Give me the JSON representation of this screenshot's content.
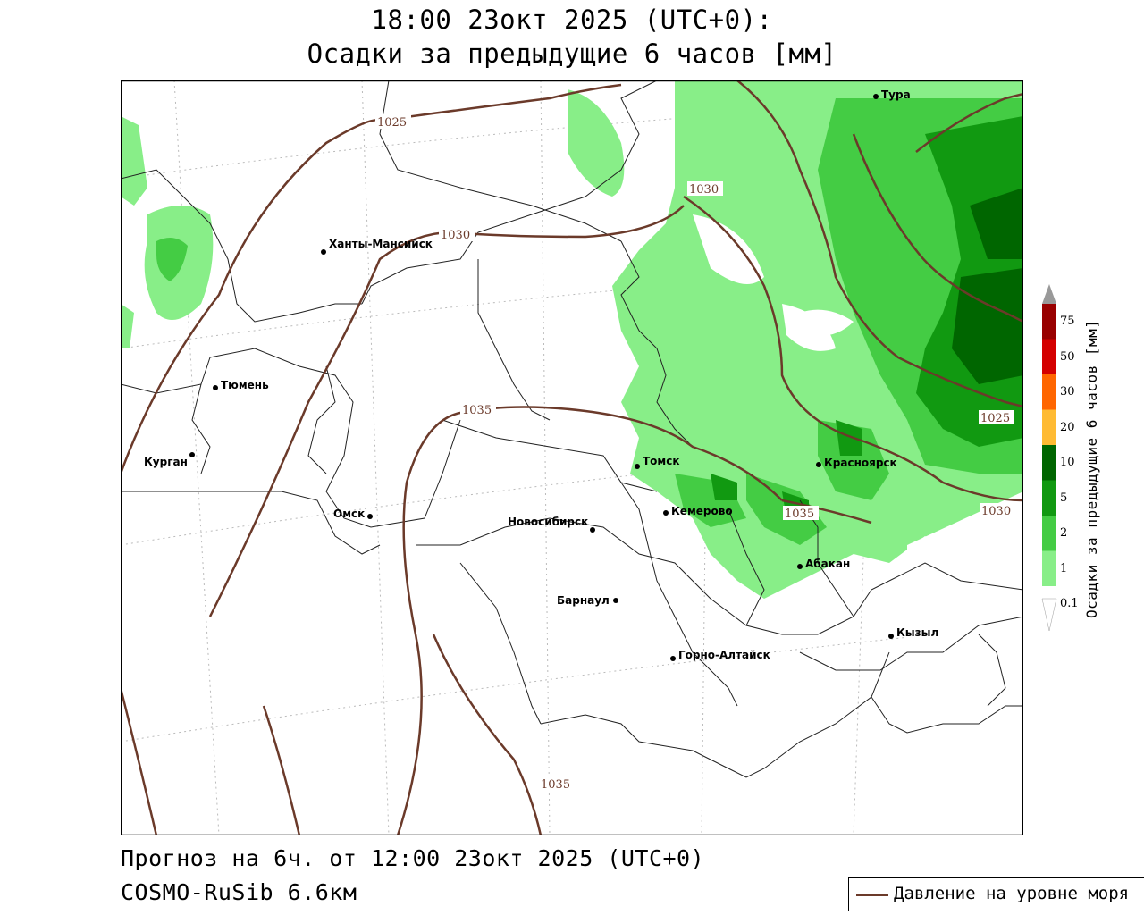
{
  "title": {
    "line1": "18:00 23окт 2025 (UTC+0):",
    "line2": "Осадки за предыдущие 6 часов [мм]"
  },
  "footer": {
    "forecast": "Прогноз на 6ч. от 12:00 23окт 2025 (UTC+0)",
    "model": "COSMO-RuSib 6.6км"
  },
  "legend": {
    "pressure_label": "Давление на уровне моря"
  },
  "scale": {
    "title": "Осадки за предыдущие 6 часов [мм]",
    "ticks": [
      "75",
      "50",
      "30",
      "20",
      "10",
      "5",
      "2",
      "1",
      "0.1"
    ],
    "colors": [
      "#990000",
      "#d40000",
      "#ff6600",
      "#ffbb33",
      "#006600",
      "#119911",
      "#44cc44",
      "#88ee88",
      "#ffffff"
    ]
  },
  "cities": [
    {
      "name": "Тура"
    },
    {
      "name": "Ханты-Мансийск"
    },
    {
      "name": "Тюмень"
    },
    {
      "name": "Курган"
    },
    {
      "name": "Омск"
    },
    {
      "name": "Новосибирск"
    },
    {
      "name": "Томск"
    },
    {
      "name": "Кемерово"
    },
    {
      "name": "Красноярск"
    },
    {
      "name": "Абакан"
    },
    {
      "name": "Барнаул"
    },
    {
      "name": "Горно-Алтайск"
    },
    {
      "name": "Кызыл"
    }
  ],
  "isobars": [
    "1025",
    "1030",
    "1035",
    "1025",
    "1030",
    "1035",
    "1035",
    "1030"
  ],
  "colors": {
    "isobar": "#6b3a2a",
    "precip_light": "#88ee88",
    "precip_mid": "#44cc44",
    "precip_heavy": "#119911",
    "precip_very_heavy": "#006600"
  }
}
